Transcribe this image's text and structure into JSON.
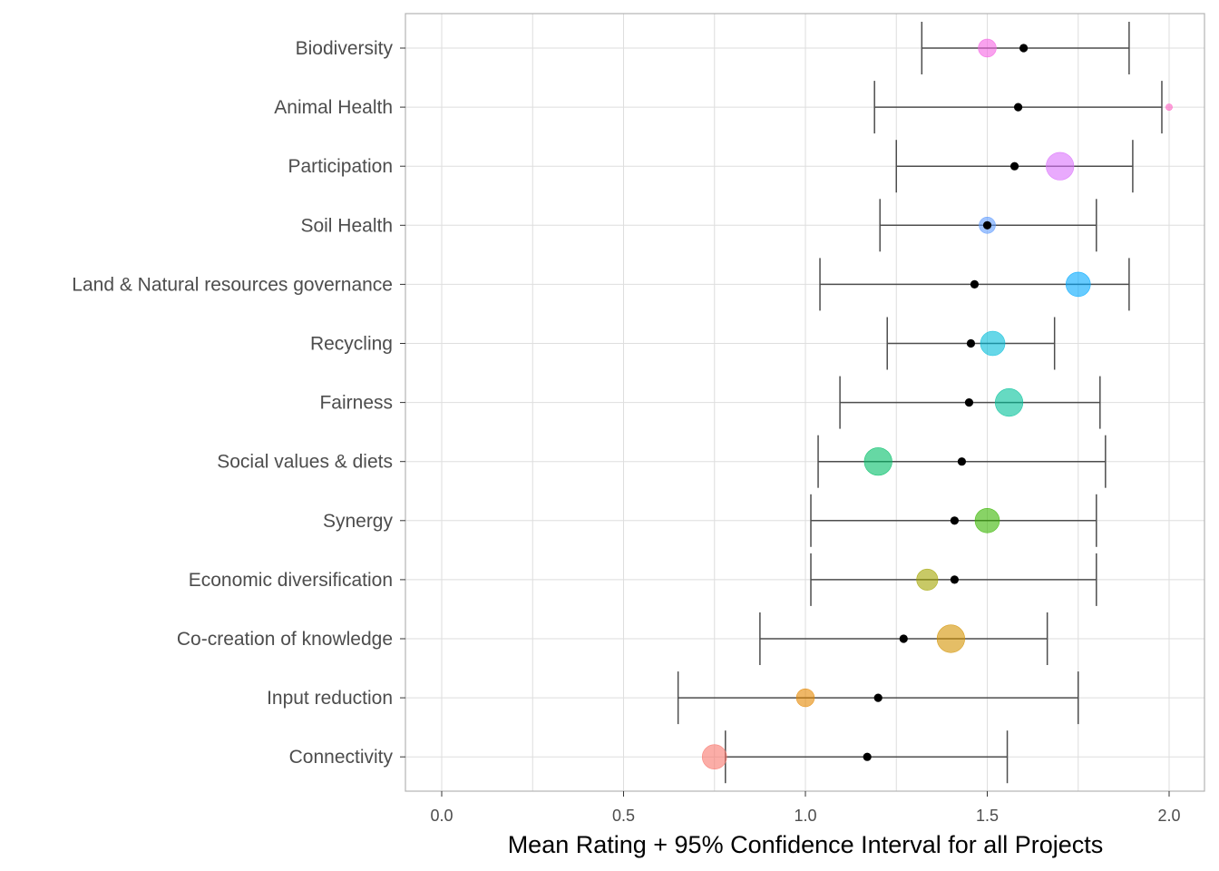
{
  "chart_data": {
    "type": "scatter",
    "xlabel": "Mean Rating + 95% Confidence Interval for all Projects",
    "ylabel": "",
    "title": "",
    "xlim": [
      -0.1,
      2.1
    ],
    "x_ticks": [
      0.0,
      0.5,
      1.0,
      1.5,
      2.0
    ],
    "x_tick_labels": [
      "0.0",
      "0.5",
      "1.0",
      "1.5",
      "2.0"
    ],
    "grid": true,
    "categories": [
      {
        "label": "Biodiversity",
        "mean": 1.6,
        "ci_low": 1.32,
        "ci_high": 1.89,
        "project_rating": 1.5,
        "bubble_size": 2.2,
        "color": "#F564E3"
      },
      {
        "label": "Animal Health",
        "mean": 1.585,
        "ci_low": 1.19,
        "ci_high": 1.98,
        "project_rating": 2.0,
        "bubble_size": 0.8,
        "color": "#FF61C3"
      },
      {
        "label": "Participation",
        "mean": 1.575,
        "ci_low": 1.25,
        "ci_high": 1.9,
        "project_rating": 1.7,
        "bubble_size": 3.4,
        "color": "#DB72FB"
      },
      {
        "label": "Soil Health",
        "mean": 1.5,
        "ci_low": 1.205,
        "ci_high": 1.8,
        "project_rating": 1.5,
        "bubble_size": 2.0,
        "color": "#619CFF"
      },
      {
        "label": "Land & Natural resources governance",
        "mean": 1.465,
        "ci_low": 1.04,
        "ci_high": 1.89,
        "project_rating": 1.75,
        "bubble_size": 3.0,
        "color": "#00A9FF"
      },
      {
        "label": "Recycling",
        "mean": 1.455,
        "ci_low": 1.225,
        "ci_high": 1.685,
        "project_rating": 1.515,
        "bubble_size": 3.0,
        "color": "#00BCD8"
      },
      {
        "label": "Fairness",
        "mean": 1.45,
        "ci_low": 1.095,
        "ci_high": 1.81,
        "project_rating": 1.56,
        "bubble_size": 3.4,
        "color": "#00C19A"
      },
      {
        "label": "Social values & diets",
        "mean": 1.43,
        "ci_low": 1.035,
        "ci_high": 1.825,
        "project_rating": 1.2,
        "bubble_size": 3.4,
        "color": "#00BE67"
      },
      {
        "label": "Synergy",
        "mean": 1.41,
        "ci_low": 1.015,
        "ci_high": 1.8,
        "project_rating": 1.5,
        "bubble_size": 3.0,
        "color": "#39B600"
      },
      {
        "label": "Economic diversification",
        "mean": 1.41,
        "ci_low": 1.015,
        "ci_high": 1.8,
        "project_rating": 1.335,
        "bubble_size": 2.6,
        "color": "#A3A500"
      },
      {
        "label": "Co-creation of knowledge",
        "mean": 1.27,
        "ci_low": 0.875,
        "ci_high": 1.665,
        "project_rating": 1.4,
        "bubble_size": 3.4,
        "color": "#D39200"
      },
      {
        "label": "Input reduction",
        "mean": 1.2,
        "ci_low": 0.65,
        "ci_high": 1.75,
        "project_rating": 1.0,
        "bubble_size": 2.2,
        "color": "#E58700"
      },
      {
        "label": "Connectivity",
        "mean": 1.17,
        "ci_low": 0.78,
        "ci_high": 1.555,
        "project_rating": 0.75,
        "bubble_size": 3.0,
        "color": "#F8766D"
      }
    ],
    "mean_point_color": "#000000",
    "bubble_opacity": 0.6
  }
}
